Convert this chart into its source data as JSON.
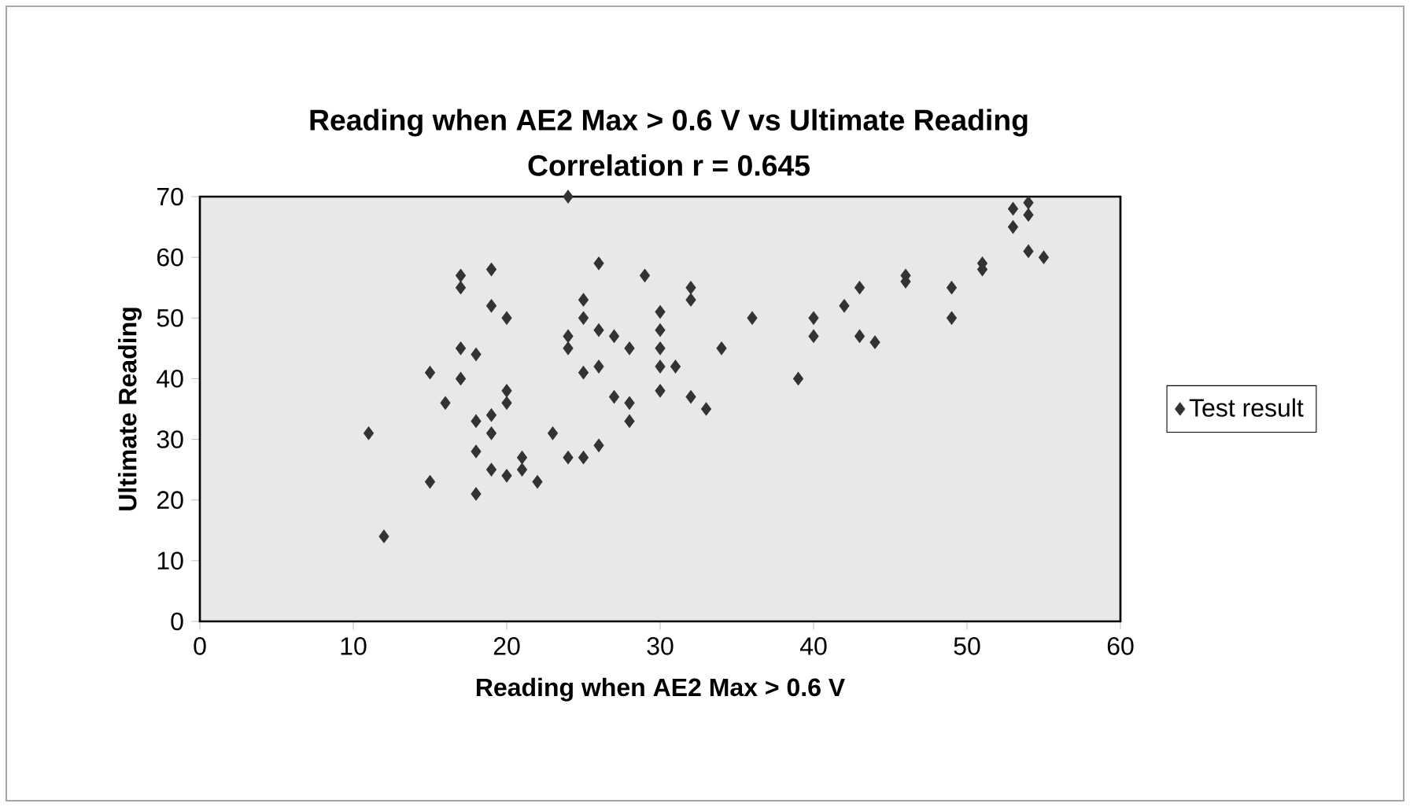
{
  "chart_data": {
    "type": "scatter",
    "title": "Reading when AE2 Max > 0.6 V vs Ultimate Reading",
    "subtitle": "Correlation r = 0.645",
    "xlabel": "Reading when AE2 Max > 0.6 V",
    "ylabel": "Ultimate Reading",
    "series": [
      {
        "name": "Test result",
        "color": "#333333",
        "x": [
          11,
          12,
          15,
          15,
          16,
          17,
          17,
          17,
          17,
          18,
          18,
          18,
          18,
          19,
          19,
          19,
          19,
          19,
          20,
          20,
          20,
          20,
          21,
          21,
          22,
          23,
          24,
          24,
          24,
          24,
          25,
          25,
          25,
          25,
          26,
          26,
          26,
          26,
          27,
          27,
          28,
          28,
          28,
          29,
          30,
          30,
          30,
          30,
          30,
          31,
          32,
          32,
          32,
          33,
          34,
          36,
          39,
          40,
          40,
          42,
          43,
          43,
          44,
          46,
          46,
          49,
          49,
          51,
          51,
          53,
          53,
          54,
          54,
          54,
          55
        ],
        "values": [
          31,
          14,
          41,
          23,
          36,
          57,
          55,
          45,
          40,
          44,
          33,
          28,
          21,
          58,
          52,
          34,
          31,
          25,
          50,
          38,
          36,
          24,
          27,
          25,
          23,
          31,
          70,
          47,
          45,
          27,
          53,
          50,
          41,
          27,
          59,
          48,
          42,
          29,
          47,
          37,
          45,
          36,
          33,
          57,
          51,
          48,
          45,
          42,
          38,
          42,
          55,
          53,
          37,
          35,
          45,
          50,
          40,
          50,
          47,
          52,
          55,
          47,
          46,
          56,
          57,
          55,
          50,
          58,
          59,
          68,
          65,
          69,
          67,
          61,
          60
        ]
      }
    ],
    "xlim": [
      0,
      60
    ],
    "ylim": [
      0,
      70
    ],
    "xticks": [
      0,
      10,
      20,
      30,
      40,
      50,
      60
    ],
    "yticks": [
      0,
      10,
      20,
      30,
      40,
      50,
      60,
      70
    ],
    "grid": false,
    "legend": "right",
    "marker": "diamond"
  }
}
